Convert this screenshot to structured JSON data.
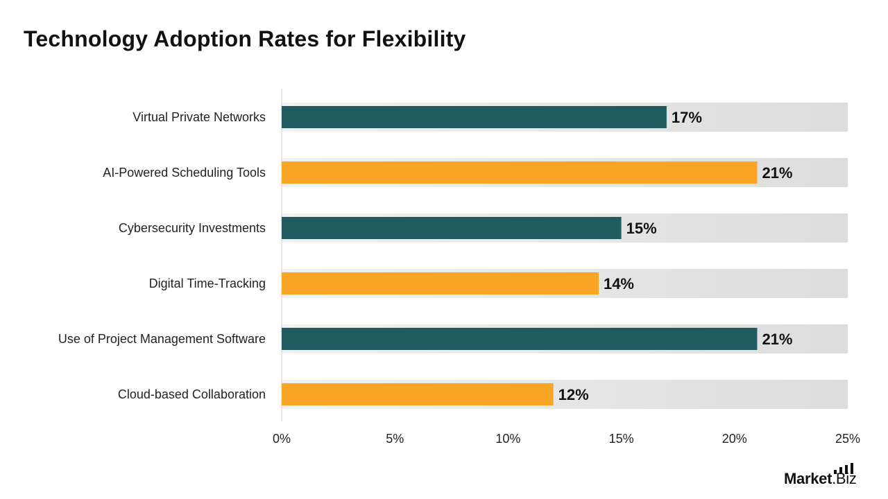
{
  "chart_data": {
    "type": "bar",
    "orientation": "horizontal",
    "title": "Technology Adoption Rates for Flexibility",
    "xlabel": "",
    "ylabel": "",
    "categories": [
      "Virtual Private Networks",
      "AI-Powered Scheduling Tools",
      "Cybersecurity Investments",
      "Digital Time-Tracking",
      "Use of Project Management Software",
      "Cloud-based Collaboration"
    ],
    "values": [
      17,
      21,
      15,
      14,
      21,
      12
    ],
    "value_labels": [
      "17%",
      "21%",
      "15%",
      "14%",
      "21%",
      "12%"
    ],
    "xlim": [
      0,
      25
    ],
    "x_ticks": [
      0,
      5,
      10,
      15,
      20,
      25
    ],
    "x_tick_labels": [
      "0%",
      "5%",
      "10%",
      "15%",
      "20%",
      "25%"
    ],
    "grid": false,
    "legend": "none",
    "colors": {
      "primary": "#1f5c60",
      "secondary": "#f9a526",
      "track_start": "#f1f1f1",
      "track_end": "#dcdcdc",
      "axis": "#d4d4d4"
    }
  },
  "brand": {
    "logo_main": "Market",
    "logo_suffix": ".Biz"
  }
}
